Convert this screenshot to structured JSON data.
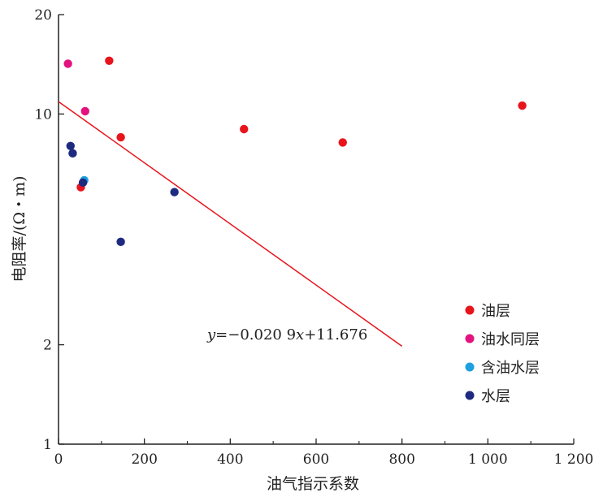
{
  "chart_data": {
    "type": "scatter",
    "xlabel": "油气指示系数",
    "ylabel": "电阻率/(Ω・m)",
    "xlim": [
      0,
      1200
    ],
    "ylim": [
      1,
      20
    ],
    "yscale": "log",
    "x_ticks": [
      0,
      200,
      400,
      600,
      800,
      1000,
      1200
    ],
    "x_tick_labels": [
      "0",
      "200",
      "400",
      "600",
      "800",
      "1 000",
      "1 200"
    ],
    "y_ticks": [
      1,
      2,
      10,
      20
    ],
    "y_tick_labels": [
      "1",
      "2",
      "10",
      "20"
    ],
    "grid": false,
    "legend_position": "right",
    "series": [
      {
        "name": "油层",
        "color": "#e8141c",
        "points": [
          [
            118,
            14.5
          ],
          [
            145,
            8.5
          ],
          [
            432,
            9.0
          ],
          [
            662,
            8.2
          ],
          [
            1080,
            10.6
          ],
          [
            52,
            6.0
          ]
        ]
      },
      {
        "name": "油水同层",
        "color": "#e3127e",
        "points": [
          [
            22,
            14.2
          ],
          [
            62,
            10.2
          ]
        ]
      },
      {
        "name": "含油水层",
        "color": "#1ea0e0",
        "points": [
          [
            60,
            6.3
          ]
        ]
      },
      {
        "name": "水层",
        "color": "#1e2a80",
        "points": [
          [
            28,
            8.0
          ],
          [
            33,
            7.6
          ],
          [
            57,
            6.2
          ],
          [
            145,
            4.1
          ],
          [
            270,
            5.8
          ]
        ]
      }
    ],
    "fit_line": {
      "equation_prefix": "y",
      "equation_body": "=−0.020 9",
      "equation_var": "x",
      "equation_rest": "+11.676",
      "x_range": [
        0,
        800
      ],
      "y_at_start": 10.9,
      "y_at_end": 1.98,
      "color": "#e8141c"
    }
  }
}
